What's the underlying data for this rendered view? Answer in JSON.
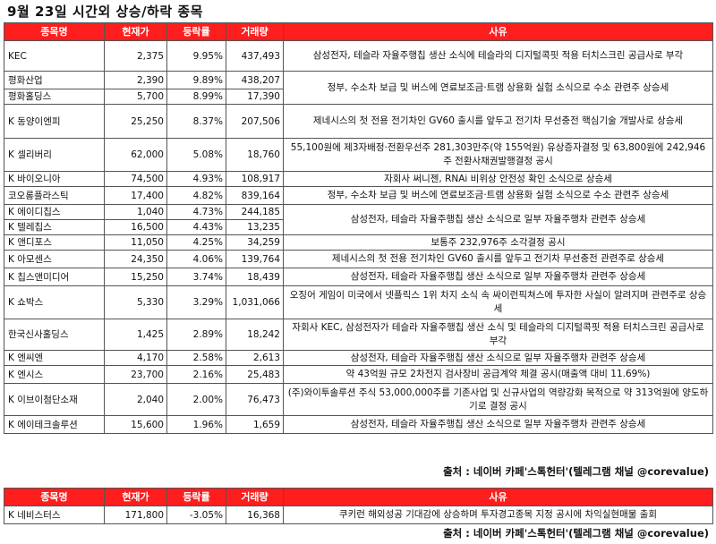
{
  "title": "9월 23일   시간외 상승/하락 종목",
  "headers": [
    "종목명",
    "현재가",
    "등락률",
    "거래량",
    "사유"
  ],
  "rows": [
    {
      "name": "KEC",
      "price": "2,375",
      "rate": "9.95%",
      "volume": "437,493",
      "reason": "삼성전자, 테슬라 자율주행칩 생산 소식에 테슬라의 디지털콕핏 적용 터치스크린 공급사로 부각"
    },
    {
      "name": "평화산업",
      "price": "2,390",
      "rate": "9.89%",
      "volume": "438,207",
      "reason": "정부, 수소차 보급 및 버스에 연료보조금·트램 상용화 실험 소식으로 수소 관련주 상승세"
    },
    {
      "name": "평화홀딩스",
      "price": "5,700",
      "rate": "8.99%",
      "volume": "17,390",
      "reason": null
    },
    {
      "name": "K 동양이엔피",
      "price": "25,250",
      "rate": "8.37%",
      "volume": "207,506",
      "reason": "제네시스의 첫 전용 전기차인 GV60 출시를 앞두고 전기차 무선충전 핵심기술 개발사로 상승세"
    },
    {
      "name": "K 셀리버리",
      "price": "62,000",
      "rate": "5.08%",
      "volume": "18,760",
      "reason": "55,100원에 제3자배정·전환우선주 281,303만주(약 155억원) 유상증자결정 및 63,800원에 242,946주 전환사채권발행결정 공시"
    },
    {
      "name": "K 바이오니아",
      "price": "74,500",
      "rate": "4.93%",
      "volume": "108,917",
      "reason": "자회사 써니젠, RNAi 비위상 안전성 확인 소식으로 상승세"
    },
    {
      "name": "코오롱플라스틱",
      "price": "17,400",
      "rate": "4.82%",
      "volume": "839,164",
      "reason": "정부, 수소차 보급 및 버스에 연료보조금·트램 상용화 실험 소식으로 수소 관련주 상승세"
    },
    {
      "name": "K 에이디칩스",
      "price": "1,040",
      "rate": "4.73%",
      "volume": "244,185",
      "reason": "삼성전자, 테슬라 자율주행칩 생산 소식으로 일부 자율주행차 관련주 상승세"
    },
    {
      "name": "K 텔레칩스",
      "price": "16,500",
      "rate": "4.43%",
      "volume": "13,235",
      "reason": null
    },
    {
      "name": "K 앤디포스",
      "price": "11,050",
      "rate": "4.25%",
      "volume": "34,259",
      "reason": "보통주 232,976주 소각결정 공시"
    },
    {
      "name": "K 아모센스",
      "price": "24,350",
      "rate": "4.06%",
      "volume": "139,764",
      "reason": "제네시스의 첫 전용 전기차인 GV60 출시를 앞두고 전기차 무선충전 관련주로 상승세"
    },
    {
      "name": "K 칩스앤미디어",
      "price": "15,250",
      "rate": "3.74%",
      "volume": "18,439",
      "reason": "삼성전자, 테슬라 자율주행칩 생산 소식으로 일부 자율주행차 관련주 상승세"
    },
    {
      "name": "K 쇼박스",
      "price": "5,330",
      "rate": "3.29%",
      "volume": "1,031,066",
      "reason": "오징어 게임이 미국에서 넷플릭스 1위 차지 소식 속 싸이런픽쳐스에 투자한 사실이 알려지며 관련주로 상승세"
    },
    {
      "name": "한국신사홀딩스",
      "price": "1,425",
      "rate": "2.89%",
      "volume": "18,242",
      "reason": "자회사 KEC, 삼성전자가 테슬라 자율주행칩 생산 소식 및 테슬라의 디지털콕핏 적용 터치스크린 공급사로 부각"
    },
    {
      "name": "K 엔씨엔",
      "price": "4,170",
      "rate": "2.58%",
      "volume": "2,613",
      "reason": "삼성전자, 테슬라 자율주행칩 생산 소식으로 일부 자율주행차 관련주 상승세"
    },
    {
      "name": "K 엔시스",
      "price": "23,700",
      "rate": "2.16%",
      "volume": "25,483",
      "reason": "약 43억원 규모 2차전지 검사장비 공급계약 체결 공시(매출액 대비 11.69%)"
    },
    {
      "name": "K 이브이첨단소재",
      "price": "2,040",
      "rate": "2.00%",
      "volume": "76,473",
      "reason": "(주)와이투솔루션 주식 53,000,000주를 기존사업 및 신규사업의 역량강화 목적으로 약 313억원에 양도하기로 결정 공시"
    },
    {
      "name": "K 에이테크솔루션",
      "price": "15,600",
      "rate": "1.96%",
      "volume": "1,659",
      "reason": "삼성전자, 테슬라 자율주행칩 생산 소식으로 일부 자율주행차 관련주 상승세"
    }
  ],
  "source": "출처 : 네이버 카페'스톡헌터'(텔레그램 채널 @corevalue)",
  "fall_headers": [
    "종목명",
    "현재가",
    "등락률",
    "거래량",
    "사유"
  ],
  "fall_rows": [
    {
      "name": "K 네비스터스",
      "price": "171,800",
      "rate": "-3.05%",
      "volume": "16,368",
      "reason": "쿠키런 해외성공 기대감에 상승하며 투자경고종목 지정 공시에 차익실현매물 출회"
    }
  ],
  "source2": "출처 : 네이버 카페'스톡헌터'(텔레그램 채널 @corevalue)",
  "colors": {
    "header_bg": "#ff1e1e",
    "header_text": "#ffffff"
  }
}
